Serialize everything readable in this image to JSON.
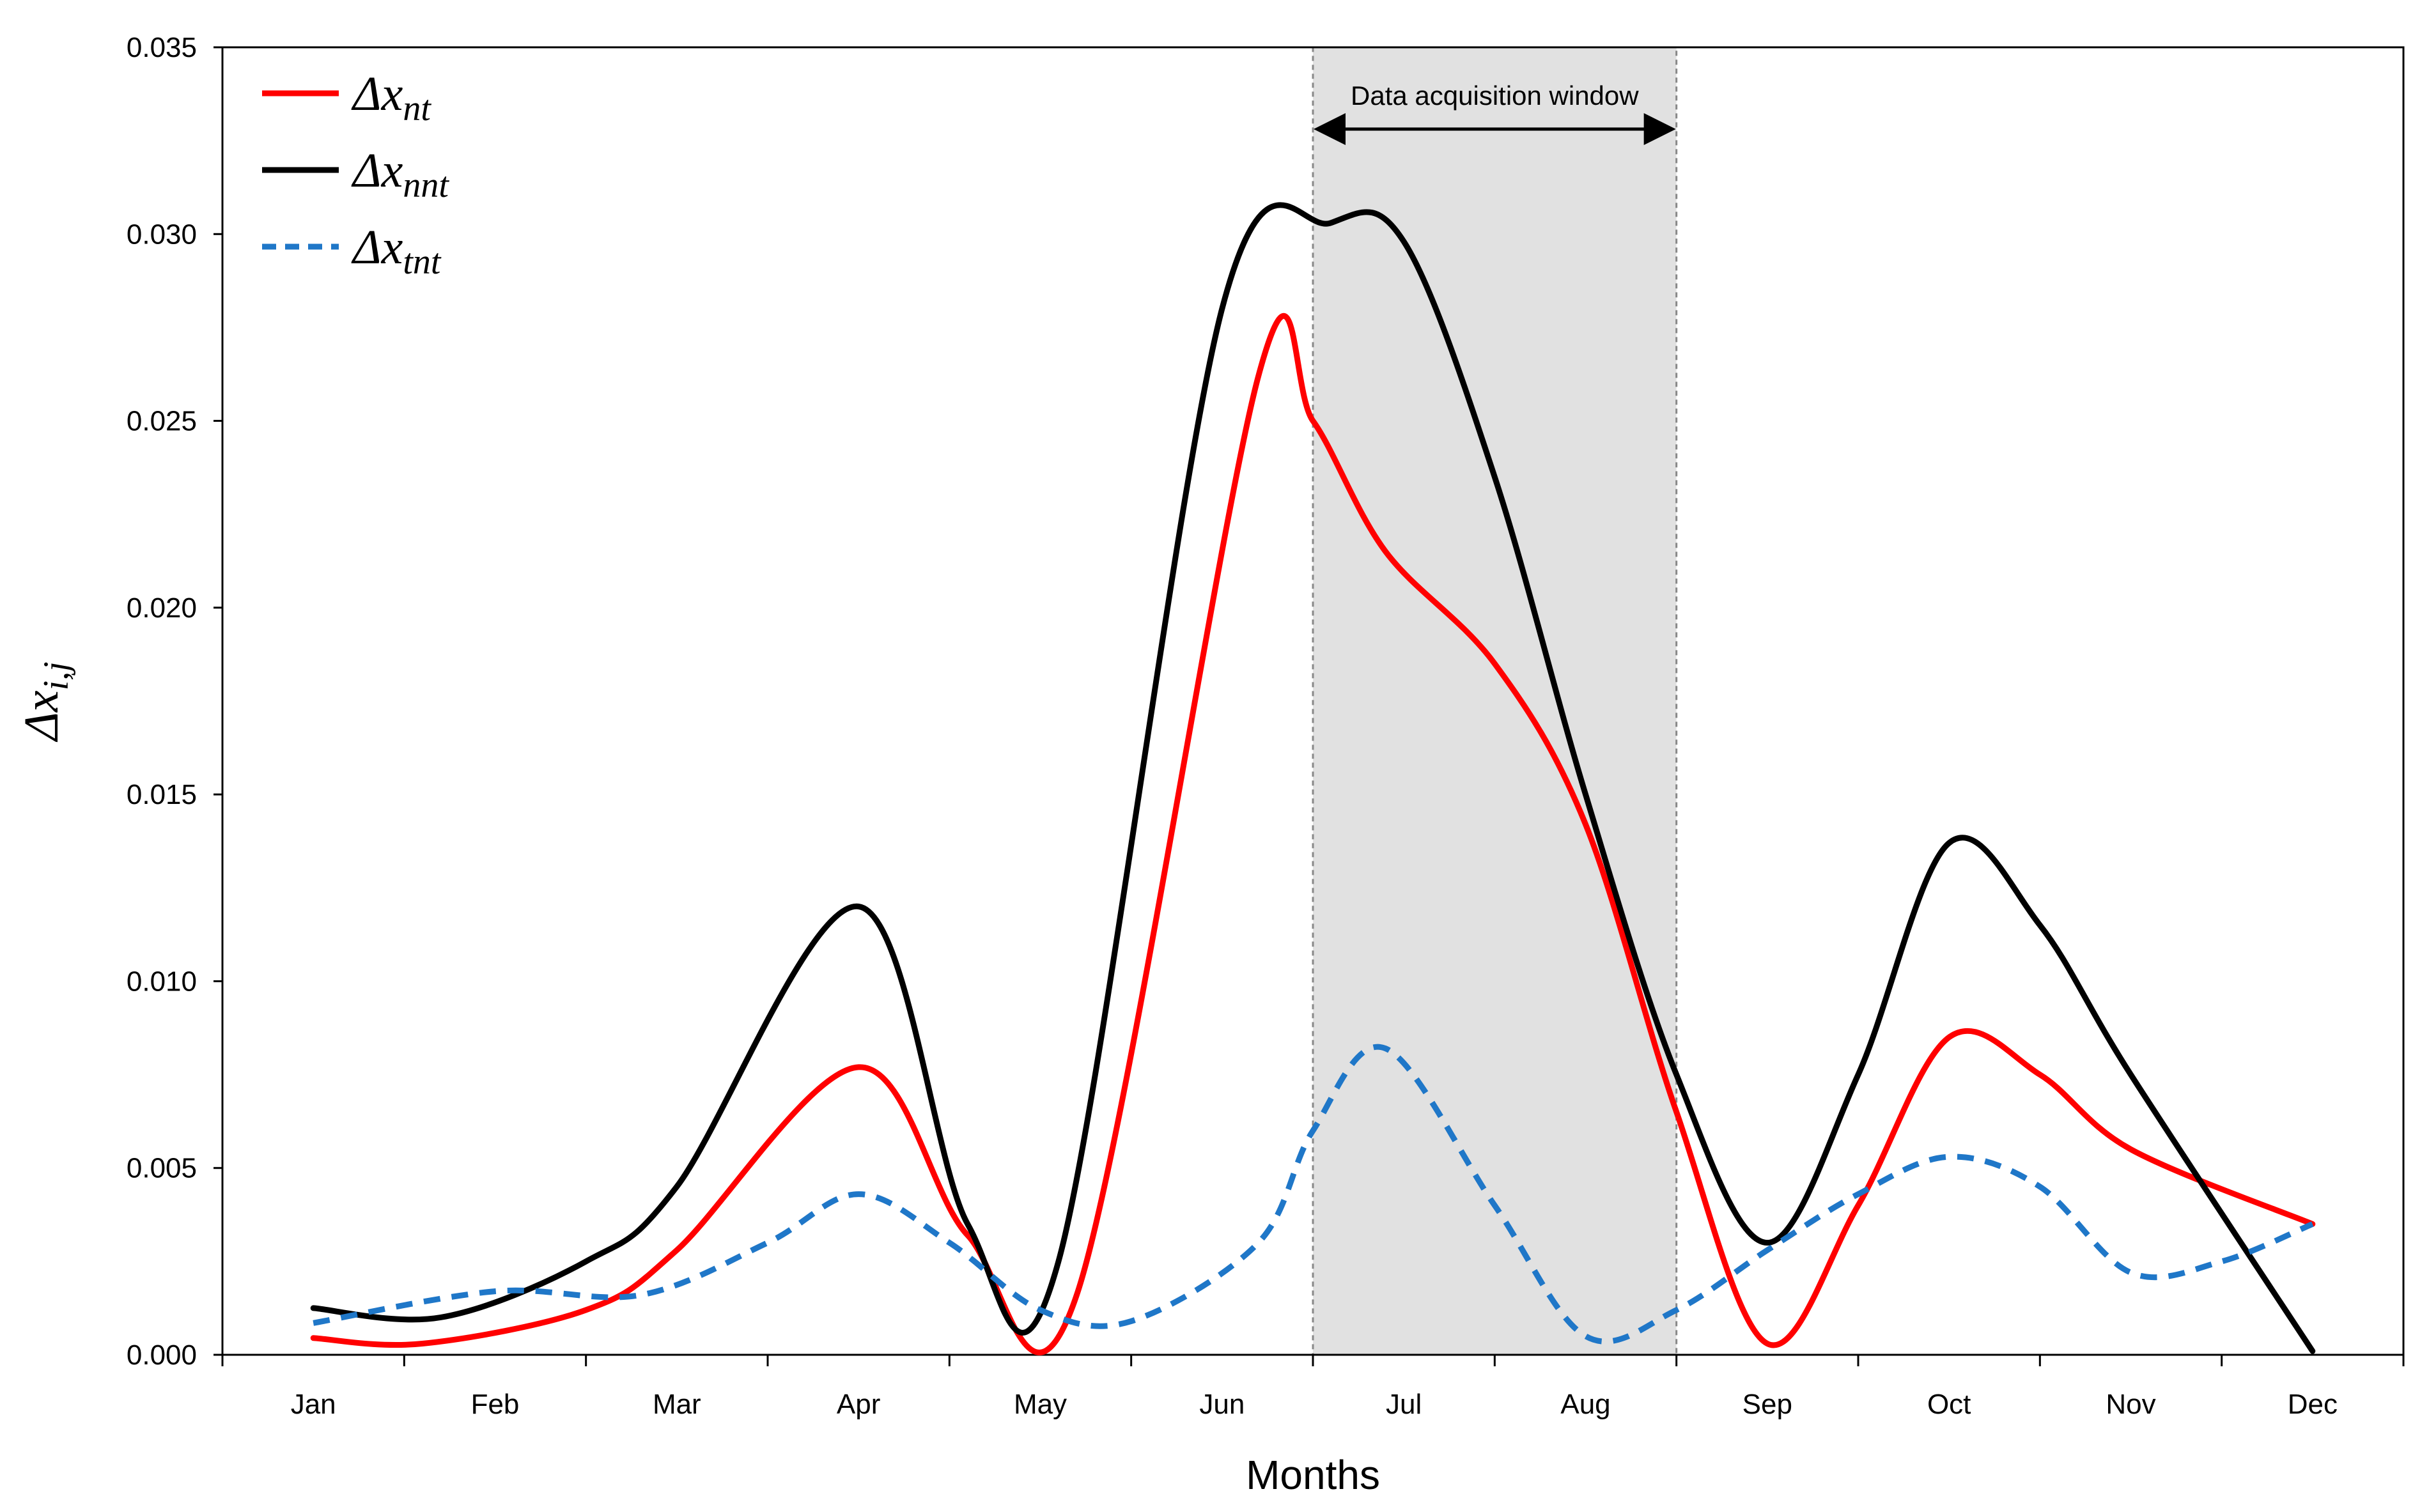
{
  "chart_data": {
    "type": "line",
    "title": "",
    "xlabel": "Months",
    "ylabel_symbol": "Δx",
    "ylabel_subscript": "i,j",
    "categories": [
      "Jan",
      "Feb",
      "Mar",
      "Apr",
      "May",
      "Jun",
      "Jul",
      "Aug",
      "Sep",
      "Oct",
      "Nov",
      "Dec"
    ],
    "ylim": [
      0,
      0.035
    ],
    "yticks": [
      "0.000",
      "0.005",
      "0.010",
      "0.015",
      "0.020",
      "0.025",
      "0.030",
      "0.035"
    ],
    "grid": false,
    "legend_position": "top-left",
    "shaded_region": {
      "from_month_index": 5.5,
      "to_month_index": 7.5,
      "label": "Data acquisition window"
    },
    "series": [
      {
        "name": "Δx_nt",
        "legend_symbol": "Δx",
        "legend_subscript": "nt",
        "color": "#ff0000",
        "dash": "solid",
        "points": [
          [
            0,
            0.00045
          ],
          [
            0.6,
            0.0003
          ],
          [
            1.5,
            0.0012
          ],
          [
            2.0,
            0.0028
          ],
          [
            3.0,
            0.0077
          ],
          [
            3.6,
            0.0032
          ],
          [
            4.2,
            0.0016
          ],
          [
            5.2,
            0.0262
          ],
          [
            5.5,
            0.025
          ],
          [
            5.9,
            0.0215
          ],
          [
            6.5,
            0.0185
          ],
          [
            7.0,
            0.0142
          ],
          [
            7.5,
            0.0065
          ],
          [
            8.0,
            0.0003
          ],
          [
            8.5,
            0.004
          ],
          [
            9.0,
            0.0085
          ],
          [
            9.5,
            0.0075
          ],
          [
            10.0,
            0.0055
          ],
          [
            11.0,
            0.0035
          ]
        ]
      },
      {
        "name": "Δx_nnt",
        "legend_symbol": "Δx",
        "legend_subscript": "nnt",
        "color": "#000000",
        "dash": "solid",
        "points": [
          [
            0,
            0.00125
          ],
          [
            0.7,
            0.001
          ],
          [
            1.5,
            0.0025
          ],
          [
            2.0,
            0.0045
          ],
          [
            3.0,
            0.012
          ],
          [
            3.6,
            0.0035
          ],
          [
            4.1,
            0.0025
          ],
          [
            5.0,
            0.028
          ],
          [
            5.6,
            0.0303
          ],
          [
            6.0,
            0.0298
          ],
          [
            6.5,
            0.0235
          ],
          [
            7.0,
            0.015
          ],
          [
            7.5,
            0.0075
          ],
          [
            8.0,
            0.003
          ],
          [
            8.5,
            0.0075
          ],
          [
            9.0,
            0.0137
          ],
          [
            9.5,
            0.0115
          ],
          [
            10.0,
            0.0075
          ],
          [
            11.0,
            0.0001
          ]
        ]
      },
      {
        "name": "Δx_tnt",
        "legend_symbol": "Δx",
        "legend_subscript": "tnt",
        "color": "#1f77c8",
        "dash": "dashed",
        "points": [
          [
            0,
            0.00085
          ],
          [
            1.0,
            0.0017
          ],
          [
            1.8,
            0.0016
          ],
          [
            2.5,
            0.003
          ],
          [
            3.0,
            0.0043
          ],
          [
            3.5,
            0.003
          ],
          [
            4.0,
            0.0012
          ],
          [
            4.5,
            0.0009
          ],
          [
            5.2,
            0.003
          ],
          [
            5.5,
            0.006
          ],
          [
            5.9,
            0.0082
          ],
          [
            6.5,
            0.004
          ],
          [
            7.0,
            0.0005
          ],
          [
            7.5,
            0.0012
          ],
          [
            8.0,
            0.0028
          ],
          [
            8.5,
            0.0043
          ],
          [
            9.0,
            0.0053
          ],
          [
            9.5,
            0.0045
          ],
          [
            10.0,
            0.0022
          ],
          [
            10.5,
            0.0025
          ],
          [
            11.0,
            0.0035
          ]
        ]
      }
    ]
  }
}
